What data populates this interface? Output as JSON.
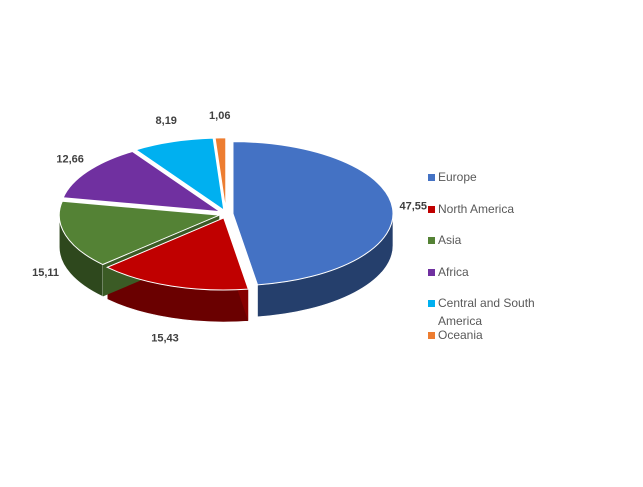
{
  "chart_data": {
    "type": "pie",
    "categories": [
      "Europe",
      "North America",
      "Asia",
      "Africa",
      "Central and South America",
      "Oceania"
    ],
    "values": [
      47.55,
      15.43,
      15.11,
      12.66,
      8.19,
      1.06
    ],
    "value_labels": [
      "47,55",
      "15,43",
      "15,11",
      "12,66",
      "8,19",
      "1,06"
    ],
    "colors": [
      "#4472c4",
      "#c00000",
      "#548235",
      "#7030a0",
      "#00b0f0",
      "#ed7d31"
    ],
    "legend": "right",
    "three_d": true,
    "exploded": true
  }
}
